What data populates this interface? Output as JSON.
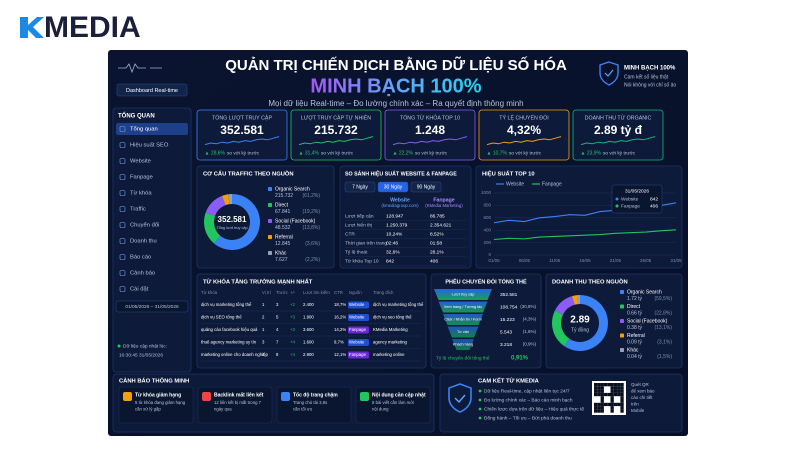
{
  "logo": {
    "text": "MEDIA"
  },
  "header": {
    "button": "Dashboard Real-time",
    "title": "QUẢN TRỊ CHIẾN DỊCH BẰNG DỮ LIỆU SỐ HÓA",
    "highlight": "MINH BẠCH 100%",
    "subtitle": "Mọi dữ liệu Real-time – Đo lường chính xác – Ra quyết định thông minh",
    "badge": {
      "title": "MINH BẠCH 100%",
      "lines": [
        "Cam kết số liệu thật",
        "Nói không với chỉ số ảo"
      ]
    }
  },
  "sidebar": {
    "heading": "TỔNG QUAN",
    "items": [
      "Tổng quan",
      "Hiệu suất SEO",
      "Website",
      "Fanpage",
      "Từ khóa",
      "Traffic",
      "Chuyển đổi",
      "Doanh thu",
      "Báo cáo",
      "Cảnh báo",
      "Cài đặt"
    ],
    "date_range": "01/05/2026 – 31/05/2026",
    "updated_label": "Dữ liệu cập nhật lúc:",
    "updated_at": "10:30:45  31/05/2026"
  },
  "kpis": [
    {
      "label": "TỔNG LƯỢT TRUY CẬP",
      "value": "352.581",
      "change": "▲ 28,6%",
      "note": "so với kỳ trước",
      "color": "#3b82f6"
    },
    {
      "label": "LƯỢT TRUY CẬP TỰ NHIÊN",
      "value": "215.732",
      "change": "▲ 31,4%",
      "note": "so với kỳ trước",
      "color": "#22c55e"
    },
    {
      "label": "TỔNG TỪ KHÓA TOP 10",
      "value": "1.248",
      "change": "▲ 22,2%",
      "note": "so với kỳ trước",
      "color": "#8b5cf6"
    },
    {
      "label": "TỶ LỆ CHUYỂN ĐỔI",
      "value": "4,32%",
      "change": "▲ 10,7%",
      "note": "so với kỳ trước",
      "color": "#f59e0b"
    },
    {
      "label": "DOANH THU TỪ ORGANIC",
      "value": "2.89 tỷ đ",
      "change": "▲ 23,9%",
      "note": "so với kỳ trước",
      "color": "#10b981"
    }
  ],
  "traffic": {
    "title": "CƠ CẤU TRAFFIC THEO NGUỒN",
    "center_value": "352.581",
    "center_label": "Tổng lượt truy cập",
    "amounts": [
      "215.732",
      "67.841",
      "48.532",
      "12.845",
      "7.627"
    ],
    "chart_data": {
      "type": "pie",
      "categories": [
        "Organic Search",
        "Direct",
        "Social (Facebook)",
        "Referral",
        "Khác"
      ],
      "values": [
        61.2,
        19.2,
        13.8,
        3.6,
        2.2
      ],
      "value_labels": [
        "(61,2%)",
        "(19,2%)",
        "(13,8%)",
        "(3,6%)",
        "(2,2%)"
      ],
      "colors": [
        "#3b82f6",
        "#22c55e",
        "#8b5cf6",
        "#f59e0b",
        "#94a3b8"
      ]
    }
  },
  "comparison": {
    "title": "SO SÁNH HIỆU SUẤT WEBSITE & FANPAGE",
    "tabs": [
      "7 Ngày",
      "30 Ngày",
      "90 Ngày"
    ],
    "columns": [
      [
        "Website",
        "(kmediagroup.com)"
      ],
      [
        "Fanpage",
        "(KMedia Marketing)"
      ]
    ],
    "rows": [
      [
        "Lượt tiếp cận",
        "128.947",
        "86.785"
      ],
      [
        "Lượt hiển thị",
        "1.250.379",
        "2.354.621"
      ],
      [
        "CTR",
        "10,24%",
        "8,52%"
      ],
      [
        "Thời gian trên trang",
        "02:46",
        "01:58"
      ],
      [
        "Tỷ lệ thoát",
        "32,6%",
        "28,1%"
      ],
      [
        "Từ khóa Top 10",
        "842",
        "406"
      ]
    ]
  },
  "performance": {
    "title": "HIỆU SUẤT TOP 10",
    "tooltip_date": "31/05/2026",
    "chart_data": {
      "type": "line",
      "categories": [
        "01/05",
        null,
        "06/05",
        null,
        "11/05",
        null,
        "16/05",
        null,
        "21/05",
        null,
        "26/05",
        null,
        "31/05"
      ],
      "series": [
        {
          "name": "Website",
          "color": "#3b82f6",
          "values": [
            520,
            560,
            540,
            600,
            620,
            650,
            640,
            700,
            720,
            760,
            780,
            800,
            842
          ]
        },
        {
          "name": "Fanpage",
          "color": "#22c55e",
          "values": [
            250,
            270,
            260,
            290,
            300,
            310,
            320,
            330,
            350,
            360,
            370,
            390,
            406
          ]
        }
      ],
      "ylim": [
        0,
        1000
      ],
      "yticks": [
        0,
        200,
        400,
        600,
        800,
        1000
      ],
      "grid": true
    }
  },
  "keywords": {
    "title": "TỪ KHÓA TĂNG TRƯỞNG MẠNH NHẤT",
    "columns": [
      "Từ khóa",
      "Vị trí",
      "Trước",
      "+/-",
      "Lượt tìm kiếm",
      "CTR",
      "Nguồn",
      "Trang đích"
    ],
    "rows": [
      [
        "dịch vụ marketing tổng thể",
        "1",
        "3",
        "+2",
        "2.400",
        "18,7%",
        "Website",
        "dịch vụ marketing tổng thể"
      ],
      [
        "dịch vụ SEO tổng thể",
        "2",
        "5",
        "+3",
        "1.900",
        "16,2%",
        "Website",
        "dịch vụ seo tổng thể"
      ],
      [
        "quảng cáo facebook hiệu quả",
        "1",
        "4",
        "+3",
        "3.600",
        "14,2%",
        "Fanpage",
        "KMedia Marketing"
      ],
      [
        "thuê agency marketing uy tín",
        "3",
        "7",
        "+4",
        "1.600",
        "9,7%",
        "Website",
        "agency marketing"
      ],
      [
        "marketing online cho doanh nghiệp",
        "4",
        "8",
        "+4",
        "2.900",
        "12,1%",
        "Fanpage",
        "marketing online"
      ]
    ]
  },
  "funnel": {
    "title": "PHỄU CHUYỂN ĐỔI TỔNG THỂ",
    "stages": [
      {
        "label": "Lượt truy cập",
        "value": "352.581"
      },
      {
        "label": "Xem trang / Tương tác",
        "value": "108.754",
        "pct": "(30,8%)"
      },
      {
        "label": "Click / Nhắn tin / Form",
        "value": "15.223",
        "pct": "(4,3%)"
      },
      {
        "label": "Tư vấn",
        "value": "5.543",
        "pct": "(1,6%)"
      },
      {
        "label": "Khách hàng",
        "value": "3.218",
        "pct": "(0,9%)"
      }
    ],
    "total_label": "Tỷ lệ chuyển đổi tổng thể",
    "total_value": "0,91%"
  },
  "revenue": {
    "title": "DOANH THU THEO NGUỒN",
    "center_value": "2.89",
    "center_label": "Tỷ đồng",
    "amounts": [
      "1.72 tỷ",
      "0.66 tỷ",
      "0.38 tỷ",
      "0.09 tỷ",
      "0.04 tỷ"
    ],
    "chart_data": {
      "type": "pie",
      "categories": [
        "Organic Search",
        "Direct",
        "Social (Facebook)",
        "Referral",
        "Khác"
      ],
      "values": [
        59.5,
        22.8,
        13.1,
        3.1,
        1.5
      ],
      "value_labels": [
        "(59,5%)",
        "(22,8%)",
        "(13,1%)",
        "(3,1%)",
        "(1,5%)"
      ],
      "colors": [
        "#3b82f6",
        "#22c55e",
        "#8b5cf6",
        "#f59e0b",
        "#94a3b8"
      ]
    }
  },
  "alerts": {
    "title": "CẢNH BÁO THÔNG MINH",
    "items": [
      {
        "title": "Từ khóa giảm hạng",
        "lines": [
          "5 từ khóa đang giảm hạng",
          "cần xử lý gấp"
        ],
        "color": "#f59e0b"
      },
      {
        "title": "Backlink mất liên kết",
        "lines": [
          "12 liên kết bị mất trong 7",
          "ngày qua"
        ],
        "color": "#ef4444"
      },
      {
        "title": "Tốc độ trang chậm",
        "lines": [
          "Trang chủ tải 3,8s",
          "cần tối ưu"
        ],
        "color": "#3b82f6"
      },
      {
        "title": "Nội dung cần cập nhật",
        "lines": [
          "8 bài viết cần làm mới",
          "nội dung"
        ],
        "color": "#22c55e"
      }
    ]
  },
  "commitment": {
    "title": "CAM KẾT TỪ KMEDIA",
    "items": [
      "Dữ liệu Real-time, cập nhật liên tục 24/7",
      "Đo lường chính xác – Báo cáo minh bạch",
      "Chiến lược dựa trên dữ liệu – Hiệu quả thực tế",
      "Đồng hành – Tối ưu – Bứt phá doanh thu"
    ],
    "qr_lines": [
      "Quét QR",
      "để xem báo",
      "cáo chi tiết",
      "trên",
      "Mobile"
    ]
  }
}
